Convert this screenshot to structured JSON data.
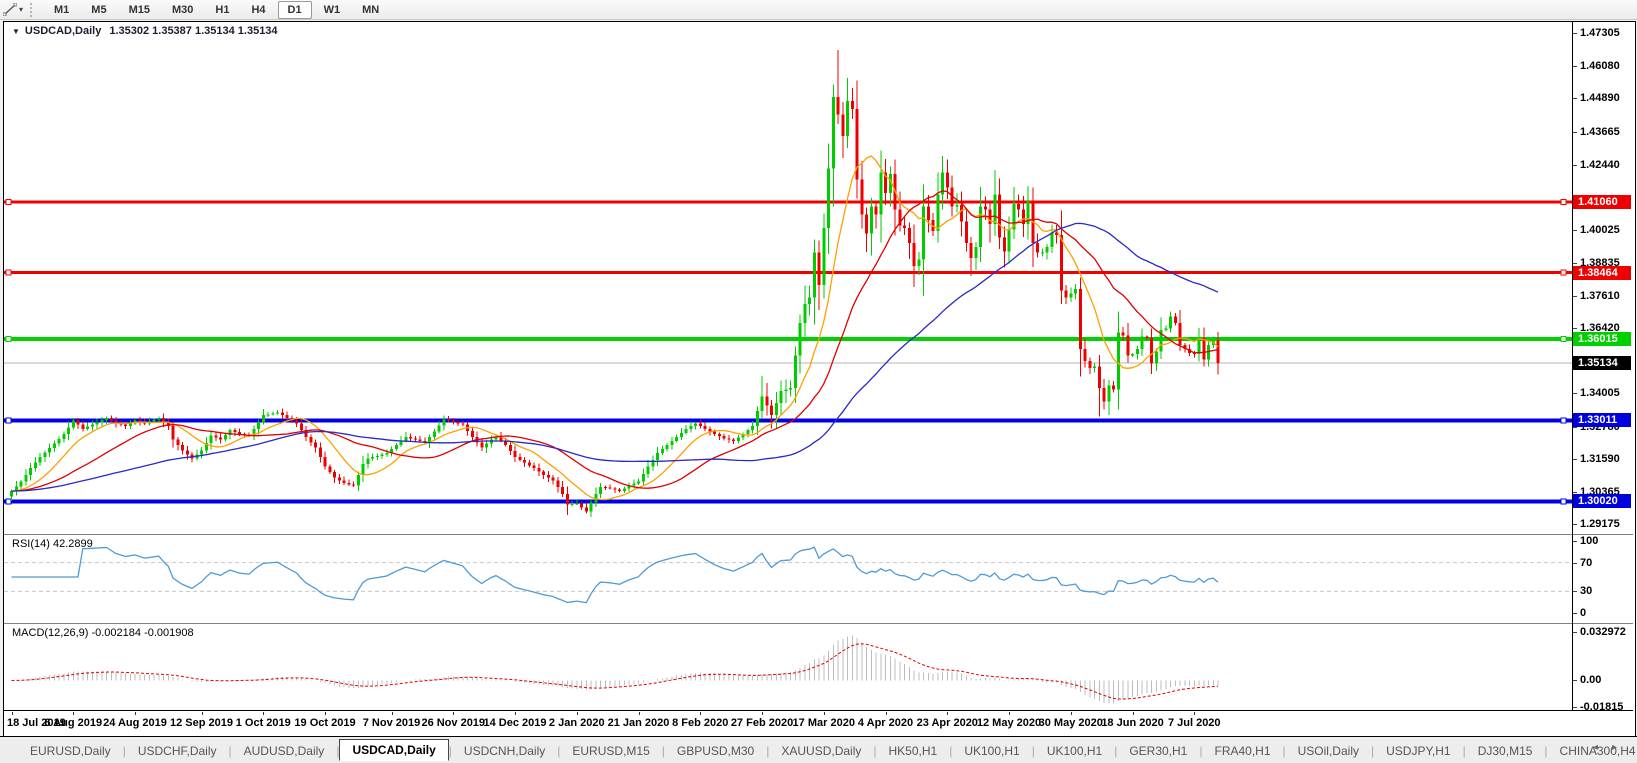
{
  "toolbar": {
    "caret": "▾",
    "timeframes": [
      "M1",
      "M5",
      "M15",
      "M30",
      "H1",
      "H4",
      "D1",
      "W1",
      "MN"
    ],
    "active_timeframe": "D1"
  },
  "title": {
    "dropdown": "▼",
    "symbol": "USDCAD,Daily",
    "ohlc": "1.35302 1.35387 1.35134 1.35134"
  },
  "price_axis": {
    "ticks": [
      "1.47305",
      "1.46080",
      "1.44890",
      "1.43665",
      "1.42440",
      "1.40025",
      "1.38835",
      "1.37610",
      "1.36420",
      "1.34005",
      "1.32780",
      "1.31590",
      "1.30365",
      "1.29175"
    ],
    "badges": [
      {
        "label": "1.41060",
        "bg": "#ee0000",
        "fg": "#ffffff"
      },
      {
        "label": "1.38464",
        "bg": "#ee0000",
        "fg": "#ffffff"
      },
      {
        "label": "1.36015",
        "bg": "#00cf00",
        "fg": "#ffffff"
      },
      {
        "label": "1.35134",
        "bg": "#000000",
        "fg": "#ffffff"
      },
      {
        "label": "1.33011",
        "bg": "#0000dd",
        "fg": "#ffffff"
      },
      {
        "label": "1.30020",
        "bg": "#0000dd",
        "fg": "#ffffff"
      }
    ]
  },
  "rsi_panel": {
    "label": "RSI(14) 42.2899",
    "axis": [
      "100",
      "70",
      "30",
      "0"
    ]
  },
  "macd_panel": {
    "label": "MACD(12,26,9) -0.002184 -0.001908",
    "axis": [
      "0.032972",
      "0.00",
      "-0.01815"
    ]
  },
  "tab_bar": {
    "scroll_left": "◂",
    "scroll_right": "▸",
    "tabs": [
      {
        "label": "EURUSD,Daily",
        "active": false
      },
      {
        "label": "USDCHF,Daily",
        "active": false
      },
      {
        "label": "AUDUSD,Daily",
        "active": false
      },
      {
        "label": "USDCAD,Daily",
        "active": true
      },
      {
        "label": "USDCNH,Daily",
        "active": false
      },
      {
        "label": "EURUSD,M15",
        "active": false
      },
      {
        "label": "GBPUSD,M30",
        "active": false
      },
      {
        "label": "XAUUSD,Daily",
        "active": false
      },
      {
        "label": "HK50,H1",
        "active": false
      },
      {
        "label": "UK100,H1",
        "active": false
      },
      {
        "label": "UK100,H1",
        "active": false
      },
      {
        "label": "GER30,H1",
        "active": false
      },
      {
        "label": "FRA40,H1",
        "active": false
      },
      {
        "label": "USOil,Daily",
        "active": false
      },
      {
        "label": "USDJPY,H1",
        "active": false
      },
      {
        "label": "DJ30,M15",
        "active": false
      },
      {
        "label": "CHINA300,H4",
        "active": false
      }
    ]
  },
  "chart_data": {
    "type": "candlestick",
    "symbol": "USDCAD",
    "timeframe": "Daily",
    "ohlc_display": {
      "open": "1.35302",
      "high": "1.35387",
      "low": "1.35134",
      "close": "1.35134"
    },
    "price_range": {
      "top": 1.4771,
      "bottom": 1.2884
    },
    "colors": {
      "bull": "#00cc00",
      "bear": "#ef0000",
      "wick_bull": "#00b400",
      "wick_bear": "#d40000",
      "ma_fast": "#ff9f00",
      "ma_mid": "#e00000",
      "ma_slow": "#2929c8",
      "rsi_line": "#4f9bd5",
      "rsi_level": "#c8c8c8",
      "macd_hist": "#bdbdbd",
      "macd_signal": "#e00000",
      "current_price_line": "#b4b4b4"
    },
    "h_lines": [
      {
        "price": 1.4106,
        "color": "#f00000",
        "width": 3,
        "role": "resistance"
      },
      {
        "price": 1.38464,
        "color": "#f00000",
        "width": 3,
        "role": "resistance"
      },
      {
        "price": 1.36015,
        "color": "#00d200",
        "width": 4,
        "role": "pivot"
      },
      {
        "price": 1.35134,
        "color": "#b4b4b4",
        "width": 1,
        "role": "current-price"
      },
      {
        "price": 1.33011,
        "color": "#0000e6",
        "width": 4,
        "role": "support"
      },
      {
        "price": 1.3002,
        "color": "#0000e6",
        "width": 4,
        "role": "support"
      }
    ],
    "moving_averages": [
      {
        "period": 10,
        "color": "#ff9f00"
      },
      {
        "period": 25,
        "color": "#e00000"
      },
      {
        "period": 60,
        "color": "#2929c8"
      }
    ],
    "rsi": {
      "period": 14,
      "value": 42.2899,
      "scale": [
        0,
        100
      ],
      "levels": [
        70,
        30
      ]
    },
    "macd": {
      "fast": 12,
      "slow": 26,
      "signal": 9,
      "value": -0.002184,
      "signal_value": -0.001908,
      "scale_max": 0.032972,
      "scale_min": -0.01815
    },
    "candle_count": 255,
    "close_anchors": [
      [
        0,
        1.304
      ],
      [
        2,
        1.3075
      ],
      [
        4,
        1.3125
      ],
      [
        6,
        1.3165
      ],
      [
        9,
        1.3215
      ],
      [
        11,
        1.325
      ],
      [
        13,
        1.33
      ],
      [
        15,
        1.327
      ],
      [
        17,
        1.3285
      ],
      [
        20,
        1.331
      ],
      [
        22,
        1.329
      ],
      [
        24,
        1.328
      ],
      [
        26,
        1.33
      ],
      [
        28,
        1.329
      ],
      [
        31,
        1.331
      ],
      [
        33,
        1.328
      ],
      [
        34,
        1.323
      ],
      [
        36,
        1.319
      ],
      [
        38,
        1.316
      ],
      [
        40,
        1.319
      ],
      [
        42,
        1.3245
      ],
      [
        44,
        1.323
      ],
      [
        46,
        1.3265
      ],
      [
        48,
        1.325
      ],
      [
        50,
        1.3245
      ],
      [
        53,
        1.332
      ],
      [
        56,
        1.333
      ],
      [
        58,
        1.331
      ],
      [
        60,
        1.329
      ],
      [
        62,
        1.324
      ],
      [
        64,
        1.32
      ],
      [
        66,
        1.313
      ],
      [
        68,
        1.309
      ],
      [
        70,
        1.307
      ],
      [
        72,
        1.306
      ],
      [
        74,
        1.314
      ],
      [
        75,
        1.316
      ],
      [
        77,
        1.317
      ],
      [
        79,
        1.318
      ],
      [
        81,
        1.321
      ],
      [
        83,
        1.324
      ],
      [
        85,
        1.323
      ],
      [
        87,
        1.322
      ],
      [
        89,
        1.326
      ],
      [
        91,
        1.3305
      ],
      [
        93,
        1.3295
      ],
      [
        95,
        1.3285
      ],
      [
        97,
        1.324
      ],
      [
        99,
        1.32
      ],
      [
        101,
        1.323
      ],
      [
        102,
        1.324
      ],
      [
        104,
        1.321
      ],
      [
        106,
        1.3165
      ],
      [
        108,
        1.3145
      ],
      [
        110,
        1.3125
      ],
      [
        112,
        1.31
      ],
      [
        114,
        1.308
      ],
      [
        116,
        1.303
      ],
      [
        117,
        1.299
      ],
      [
        119,
        1.2995
      ],
      [
        121,
        1.2965
      ],
      [
        123,
        1.303
      ],
      [
        124,
        1.3055
      ],
      [
        126,
        1.305
      ],
      [
        128,
        1.304
      ],
      [
        130,
        1.306
      ],
      [
        132,
        1.3075
      ],
      [
        134,
        1.313
      ],
      [
        136,
        1.318
      ],
      [
        138,
        1.321
      ],
      [
        140,
        1.324
      ],
      [
        142,
        1.327
      ],
      [
        144,
        1.329
      ],
      [
        146,
        1.327
      ],
      [
        148,
        1.325
      ],
      [
        150,
        1.3235
      ],
      [
        152,
        1.3225
      ],
      [
        154,
        1.325
      ],
      [
        156,
        1.328
      ],
      [
        158,
        1.339
      ],
      [
        160,
        1.332
      ],
      [
        162,
        1.341
      ],
      [
        164,
        1.342
      ],
      [
        166,
        1.366
      ],
      [
        167,
        1.373
      ],
      [
        168,
        1.3755
      ],
      [
        169,
        1.392
      ],
      [
        170,
        1.38
      ],
      [
        171,
        1.401
      ],
      [
        172,
        1.423
      ],
      [
        173,
        1.4495
      ],
      [
        174,
        1.443
      ],
      [
        175,
        1.435
      ],
      [
        176,
        1.448
      ],
      [
        177,
        1.445
      ],
      [
        178,
        1.419
      ],
      [
        179,
        1.406
      ],
      [
        180,
        1.399
      ],
      [
        181,
        1.409
      ],
      [
        182,
        1.406
      ],
      [
        183,
        1.4215
      ],
      [
        184,
        1.414
      ],
      [
        185,
        1.421
      ],
      [
        186,
        1.408
      ],
      [
        187,
        1.402
      ],
      [
        188,
        1.401
      ],
      [
        189,
        1.3955
      ],
      [
        190,
        1.387
      ],
      [
        191,
        1.3895
      ],
      [
        192,
        1.409
      ],
      [
        193,
        1.404
      ],
      [
        194,
        1.4
      ],
      [
        195,
        1.4135
      ],
      [
        196,
        1.4215
      ],
      [
        197,
        1.416
      ],
      [
        198,
        1.409
      ],
      [
        199,
        1.4095
      ],
      [
        200,
        1.4035
      ],
      [
        201,
        1.3955
      ],
      [
        202,
        1.39
      ],
      [
        203,
        1.394
      ],
      [
        204,
        1.409
      ],
      [
        205,
        1.408
      ],
      [
        206,
        1.4025
      ],
      [
        207,
        1.4135
      ],
      [
        208,
        1.3975
      ],
      [
        209,
        1.3925
      ],
      [
        210,
        1.4005
      ],
      [
        211,
        1.41
      ],
      [
        212,
        1.408
      ],
      [
        213,
        1.4025
      ],
      [
        214,
        1.411
      ],
      [
        215,
        1.3955
      ],
      [
        216,
        1.392
      ],
      [
        217,
        1.392
      ],
      [
        218,
        1.394
      ],
      [
        219,
        1.3995
      ],
      [
        220,
        1.3985
      ],
      [
        221,
        1.378
      ],
      [
        222,
        1.3755
      ],
      [
        223,
        1.377
      ],
      [
        224,
        1.3785
      ],
      [
        225,
        1.3565
      ],
      [
        226,
        1.352
      ],
      [
        227,
        1.3495
      ],
      [
        228,
        1.35
      ],
      [
        229,
        1.342
      ],
      [
        230,
        1.337
      ],
      [
        231,
        1.343
      ],
      [
        232,
        1.3415
      ],
      [
        233,
        1.3625
      ],
      [
        234,
        1.3615
      ],
      [
        235,
        1.354
      ],
      [
        236,
        1.3545
      ],
      [
        237,
        1.3565
      ],
      [
        238,
        1.361
      ],
      [
        239,
        1.3605
      ],
      [
        240,
        1.351
      ],
      [
        241,
        1.3555
      ],
      [
        242,
        1.3635
      ],
      [
        243,
        1.364
      ],
      [
        244,
        1.3685
      ],
      [
        245,
        1.366
      ],
      [
        246,
        1.358
      ],
      [
        247,
        1.3565
      ],
      [
        248,
        1.355
      ],
      [
        249,
        1.3545
      ],
      [
        250,
        1.3605
      ],
      [
        251,
        1.3525
      ],
      [
        252,
        1.358
      ],
      [
        253,
        1.3595
      ],
      [
        254,
        1.3513
      ]
    ],
    "wick_overrides": {
      "117": {
        "l": 1.2952
      },
      "121": {
        "l": 1.2957
      },
      "158": {
        "h": 1.3464
      },
      "173": {
        "h": 1.454
      },
      "174": {
        "h": 1.4668
      },
      "176": {
        "h": 1.4565
      },
      "183": {
        "h": 1.4297
      },
      "229": {
        "l": 1.3316
      }
    },
    "x_labels": [
      {
        "text": "18 Jul 2019",
        "index": 0
      },
      {
        "text": "6 Aug 2019",
        "index": 13
      },
      {
        "text": "24 Aug 2019",
        "index": 26
      },
      {
        "text": "12 Sep 2019",
        "index": 40
      },
      {
        "text": "1 Oct 2019",
        "index": 53
      },
      {
        "text": "19 Oct 2019",
        "index": 66
      },
      {
        "text": "7 Nov 2019",
        "index": 80
      },
      {
        "text": "26 Nov 2019",
        "index": 93
      },
      {
        "text": "14 Dec 2019",
        "index": 106
      },
      {
        "text": "2 Jan 2020",
        "index": 119
      },
      {
        "text": "21 Jan 2020",
        "index": 132
      },
      {
        "text": "8 Feb 2020",
        "index": 145
      },
      {
        "text": "27 Feb 2020",
        "index": 158
      },
      {
        "text": "17 Mar 2020",
        "index": 171
      },
      {
        "text": "4 Apr 2020",
        "index": 184
      },
      {
        "text": "23 Apr 2020",
        "index": 197
      },
      {
        "text": "12 May 2020",
        "index": 210
      },
      {
        "text": "30 May 2020",
        "index": 223
      },
      {
        "text": "18 Jun 2020",
        "index": 236
      },
      {
        "text": "7 Jul 2020",
        "index": 249
      }
    ]
  }
}
